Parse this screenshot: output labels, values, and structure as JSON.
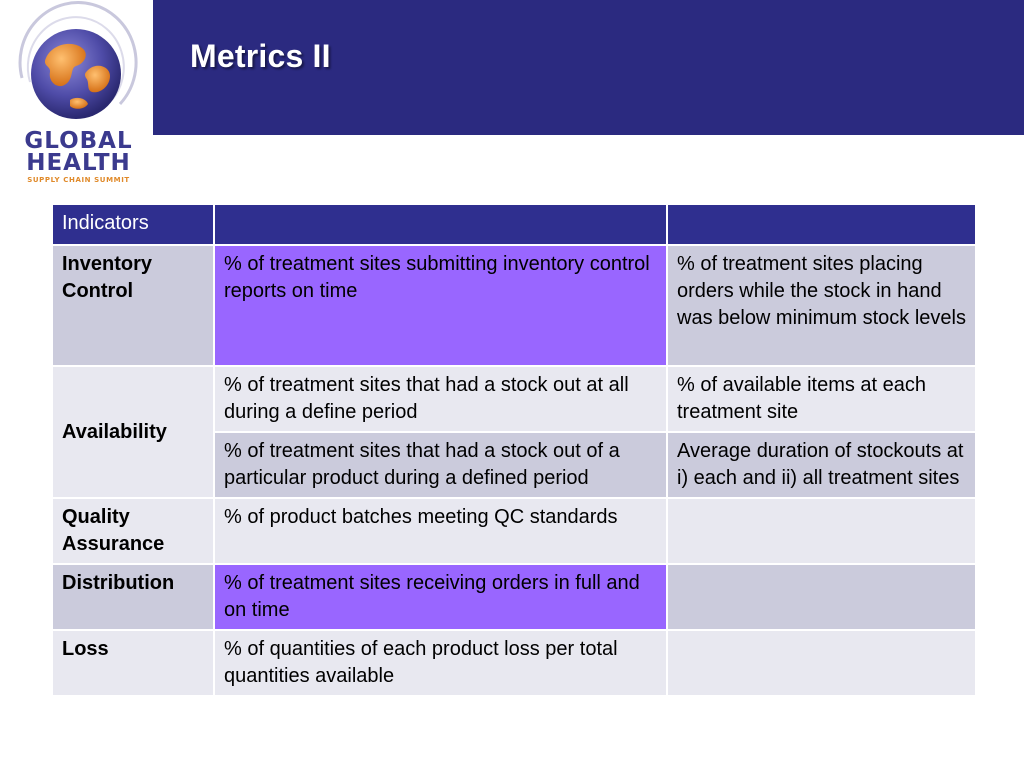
{
  "slide": {
    "title": "Metrics II",
    "logo": {
      "line1": "GLOBAL",
      "line2": "HEALTH",
      "line3": "SUPPLY CHAIN SUMMIT"
    }
  },
  "colors": {
    "header": "#2b2a80",
    "table_header": "#2f2f8f",
    "row_light": "#e8e8f0",
    "row_dark": "#cbcbdc",
    "highlight": "#9966ff"
  },
  "table": {
    "header": [
      "Indicators",
      "",
      ""
    ],
    "rows": [
      {
        "category": "Inventory Control",
        "col2": "% of treatment sites submitting inventory control reports on time",
        "col3": "% of treatment sites placing orders while the stock in hand was below minimum stock levels"
      },
      {
        "category": "Availability",
        "col2": "% of treatment sites that had a stock out at all during a define period",
        "col3": "% of available items at each treatment site"
      },
      {
        "col2": "% of treatment sites that had a stock out of a particular product during a defined period",
        "col3": "Average duration of stockouts at i) each and ii) all treatment sites"
      },
      {
        "category": "Quality Assurance",
        "col2": "% of product batches  meeting QC standards",
        "col3": ""
      },
      {
        "category": "Distribution",
        "col2": "% of treatment sites receiving orders in full and on time",
        "col3": ""
      },
      {
        "category": "Loss",
        "col2": "% of quantities of each product loss per total quantities available",
        "col3": ""
      }
    ]
  }
}
